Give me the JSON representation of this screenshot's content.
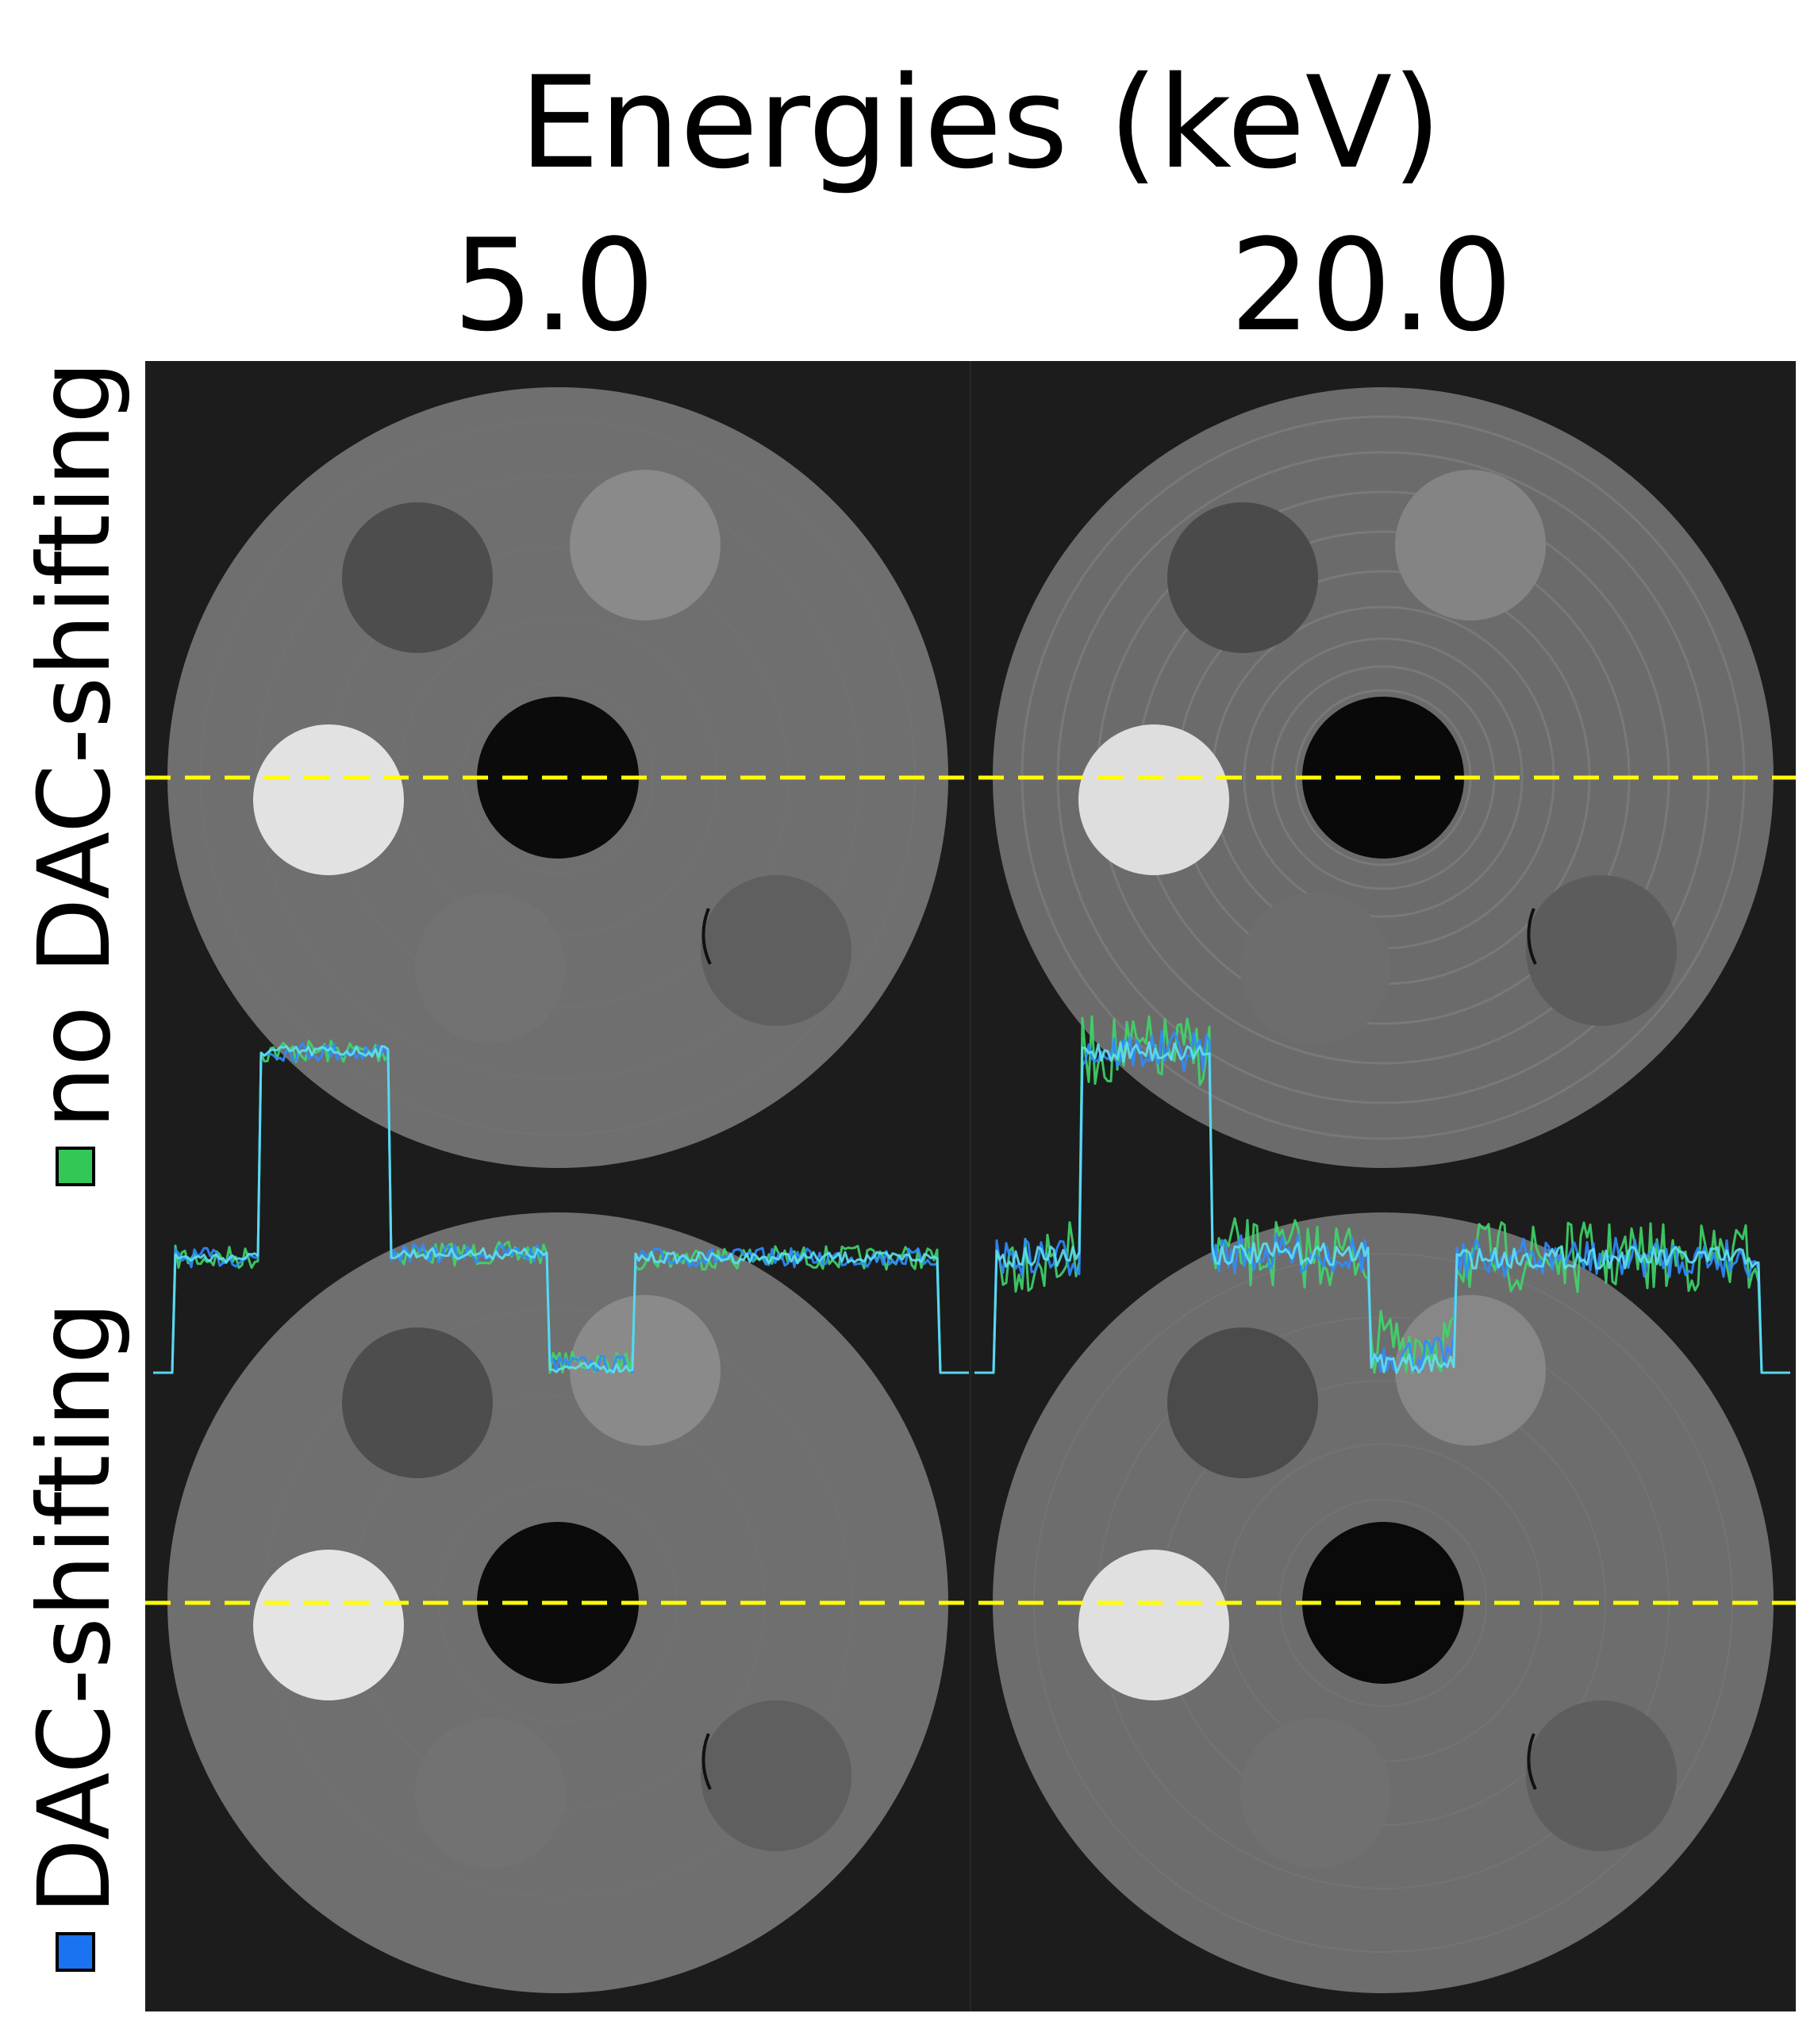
{
  "header": {
    "title": "Energies (keV)"
  },
  "columns": [
    {
      "label": "5.0"
    },
    {
      "label": "20.0"
    }
  ],
  "rows": [
    {
      "label": "no DAC-shifting",
      "swatch_color": "#33c757"
    },
    {
      "label": "DAC-shifting",
      "swatch_color": "#1a73f0"
    }
  ],
  "colors": {
    "profile_no_dac": "#3fd66a",
    "profile_dac": "#2f8cff",
    "profile_overlap": "#5ee0f0",
    "line_profile_marker": "#ffff00"
  },
  "icons": {
    "row_swatch": "square-legend-icon"
  }
}
